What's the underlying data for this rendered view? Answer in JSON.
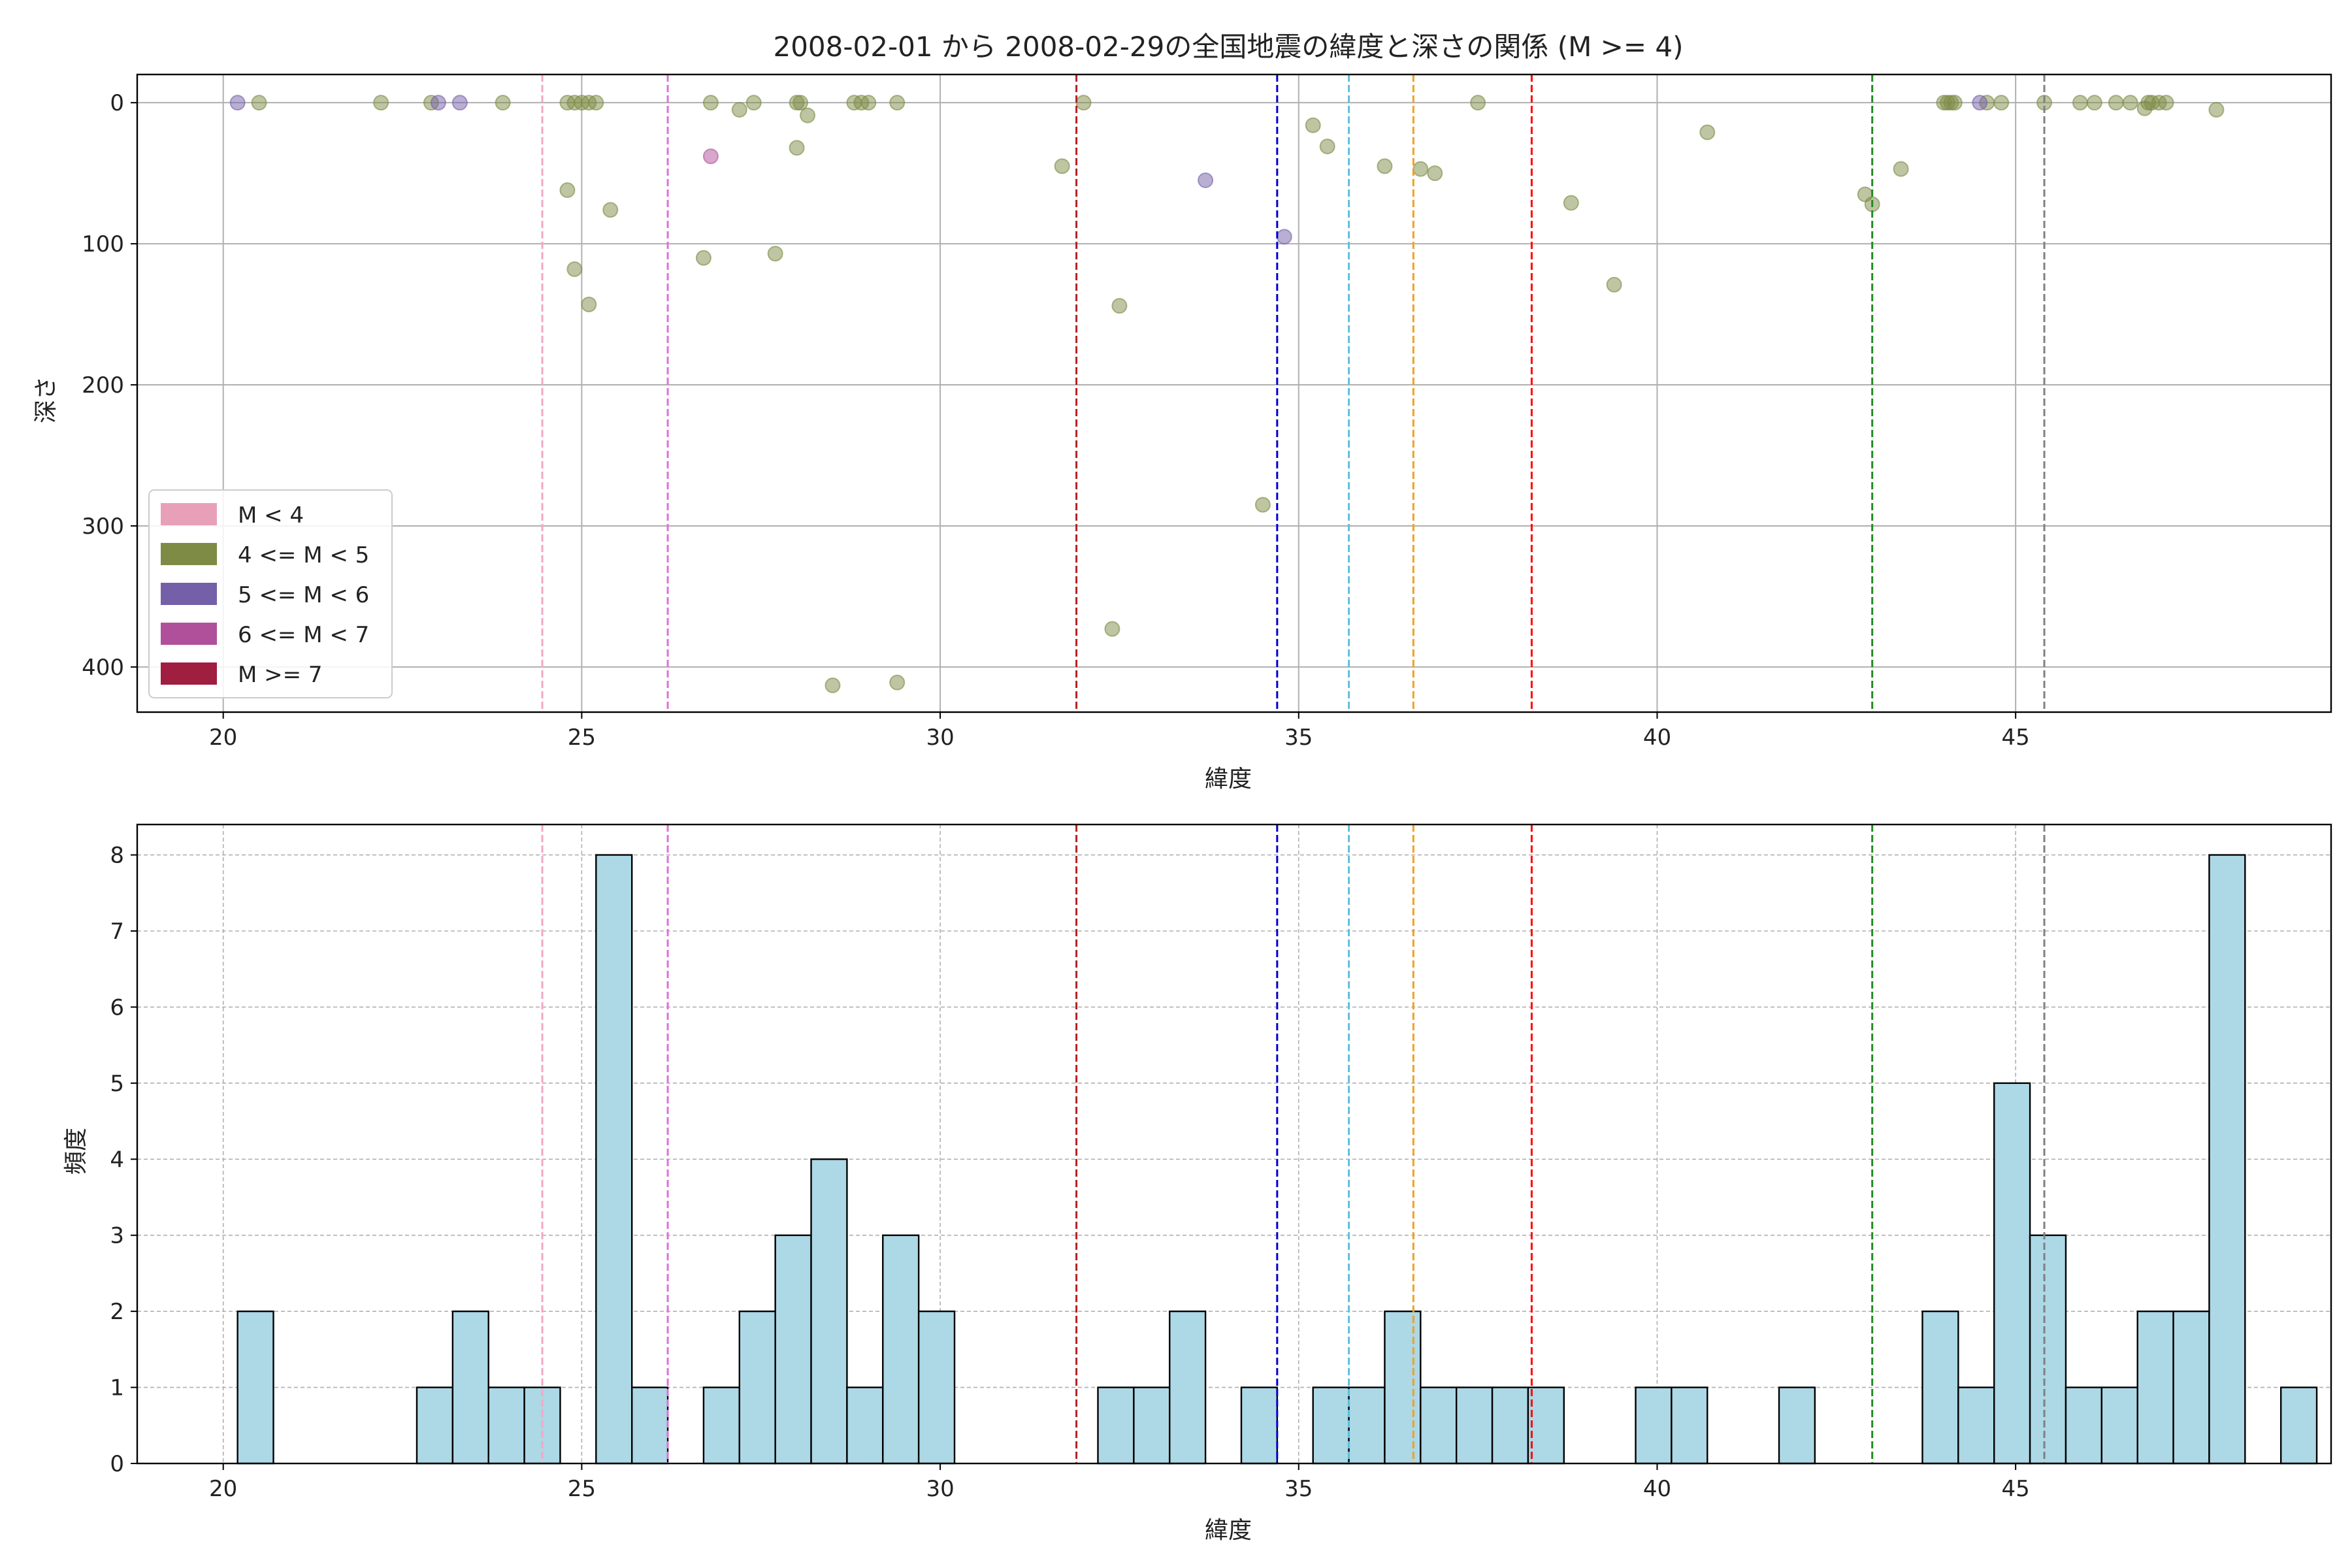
{
  "chart_data": [
    {
      "type": "scatter",
      "title": "2008-02-01 から 2008-02-29の全国地震の緯度と深さの関係 (M >= 4)",
      "xlabel": "緯度",
      "ylabel": "深さ",
      "xlim": [
        18.8,
        49.4
      ],
      "ylim": [
        432,
        -20
      ],
      "y_inverted": true,
      "xticks": [
        20,
        25,
        30,
        35,
        40,
        45
      ],
      "yticks": [
        0,
        100,
        200,
        300,
        400
      ],
      "grid": true,
      "legend_position": "lower-left",
      "legend": [
        {
          "label": "M < 4",
          "color": "#e8a0b8"
        },
        {
          "label": "4 <= M < 5",
          "color": "#7d8b45"
        },
        {
          "label": "5 <= M < 6",
          "color": "#7460a8"
        },
        {
          "label": "6 <= M < 7",
          "color": "#b0509a"
        },
        {
          "label": "M >= 7",
          "color": "#a01e40"
        }
      ],
      "series": [
        {
          "name": "4 <= M < 5",
          "color": "#7d8b45",
          "points": [
            [
              20.5,
              0
            ],
            [
              22.2,
              0
            ],
            [
              22.9,
              0
            ],
            [
              23.9,
              0
            ],
            [
              24.8,
              0
            ],
            [
              24.9,
              0
            ],
            [
              25.0,
              0
            ],
            [
              25.1,
              0
            ],
            [
              25.2,
              0
            ],
            [
              24.8,
              62
            ],
            [
              24.9,
              118
            ],
            [
              25.1,
              143
            ],
            [
              25.4,
              76
            ],
            [
              26.8,
              0
            ],
            [
              27.2,
              5
            ],
            [
              27.4,
              0
            ],
            [
              28.0,
              0
            ],
            [
              28.05,
              0
            ],
            [
              28.15,
              9
            ],
            [
              28.0,
              32
            ],
            [
              26.7,
              110
            ],
            [
              27.7,
              107
            ],
            [
              28.8,
              0
            ],
            [
              28.9,
              0
            ],
            [
              29.0,
              0
            ],
            [
              29.4,
              0
            ],
            [
              28.5,
              413
            ],
            [
              29.4,
              411
            ],
            [
              31.7,
              45
            ],
            [
              32.0,
              0
            ],
            [
              32.4,
              373
            ],
            [
              32.5,
              144
            ],
            [
              34.5,
              285
            ],
            [
              35.2,
              16
            ],
            [
              35.4,
              31
            ],
            [
              36.2,
              45
            ],
            [
              36.7,
              47
            ],
            [
              36.9,
              50
            ],
            [
              37.5,
              0
            ],
            [
              38.8,
              71
            ],
            [
              39.4,
              129
            ],
            [
              40.7,
              21
            ],
            [
              42.9,
              65
            ],
            [
              43.0,
              72
            ],
            [
              43.4,
              47
            ],
            [
              44.0,
              0
            ],
            [
              44.05,
              0
            ],
            [
              44.1,
              0
            ],
            [
              44.15,
              0
            ],
            [
              44.6,
              0
            ],
            [
              44.8,
              0
            ],
            [
              45.4,
              0
            ],
            [
              45.9,
              0
            ],
            [
              46.1,
              0
            ],
            [
              46.4,
              0
            ],
            [
              46.6,
              0
            ],
            [
              46.8,
              4
            ],
            [
              46.85,
              0
            ],
            [
              46.9,
              0
            ],
            [
              47.0,
              0
            ],
            [
              47.1,
              0
            ],
            [
              47.8,
              5
            ]
          ]
        },
        {
          "name": "5 <= M < 6",
          "color": "#7460a8",
          "points": [
            [
              20.2,
              0
            ],
            [
              23.0,
              0
            ],
            [
              23.3,
              0
            ],
            [
              33.7,
              55
            ],
            [
              34.8,
              95
            ],
            [
              44.5,
              0
            ]
          ]
        },
        {
          "name": "6 <= M < 7",
          "color": "#b0509a",
          "points": [
            [
              26.8,
              38
            ]
          ]
        }
      ],
      "vlines": [
        {
          "x": 24.45,
          "color": "#f4a6c6"
        },
        {
          "x": 26.2,
          "color": "#e070d8"
        },
        {
          "x": 31.9,
          "color": "#b22222"
        },
        {
          "x": 34.7,
          "color": "#0000cd"
        },
        {
          "x": 35.7,
          "color": "#5bc0de"
        },
        {
          "x": 36.6,
          "color": "#f0a020"
        },
        {
          "x": 38.25,
          "color": "#ff0000"
        },
        {
          "x": 43.0,
          "color": "#228b22"
        },
        {
          "x": 45.4,
          "color": "#808080"
        }
      ]
    },
    {
      "type": "bar",
      "subtype": "histogram",
      "xlabel": "緯度",
      "ylabel": "頻度",
      "xlim": [
        18.8,
        49.4
      ],
      "ylim": [
        0,
        8.4
      ],
      "xticks": [
        20,
        25,
        30,
        35,
        40,
        45
      ],
      "yticks": [
        0,
        1,
        2,
        3,
        4,
        5,
        6,
        7,
        8
      ],
      "grid": "dashed",
      "bar_color": "#add8e6",
      "bin_edges_start": 20.2,
      "bin_width": 0.5,
      "counts": [
        2,
        0,
        0,
        0,
        0,
        1,
        2,
        1,
        1,
        0,
        8,
        1,
        0,
        1,
        2,
        3,
        4,
        1,
        3,
        2,
        0,
        0,
        0,
        0,
        1,
        1,
        2,
        0,
        1,
        0,
        1,
        1,
        2,
        1,
        1,
        1,
        1,
        0,
        0,
        1,
        1,
        0,
        0,
        1,
        0,
        0,
        0,
        2,
        1,
        5,
        3,
        1,
        1,
        2,
        2,
        8,
        0,
        1
      ],
      "vlines": [
        {
          "x": 24.45,
          "color": "#f4a6c6"
        },
        {
          "x": 26.2,
          "color": "#e070d8"
        },
        {
          "x": 31.9,
          "color": "#b22222"
        },
        {
          "x": 34.7,
          "color": "#0000cd"
        },
        {
          "x": 35.7,
          "color": "#5bc0de"
        },
        {
          "x": 36.6,
          "color": "#f0a020"
        },
        {
          "x": 38.25,
          "color": "#ff0000"
        },
        {
          "x": 43.0,
          "color": "#228b22"
        },
        {
          "x": 45.4,
          "color": "#808080"
        }
      ]
    }
  ]
}
